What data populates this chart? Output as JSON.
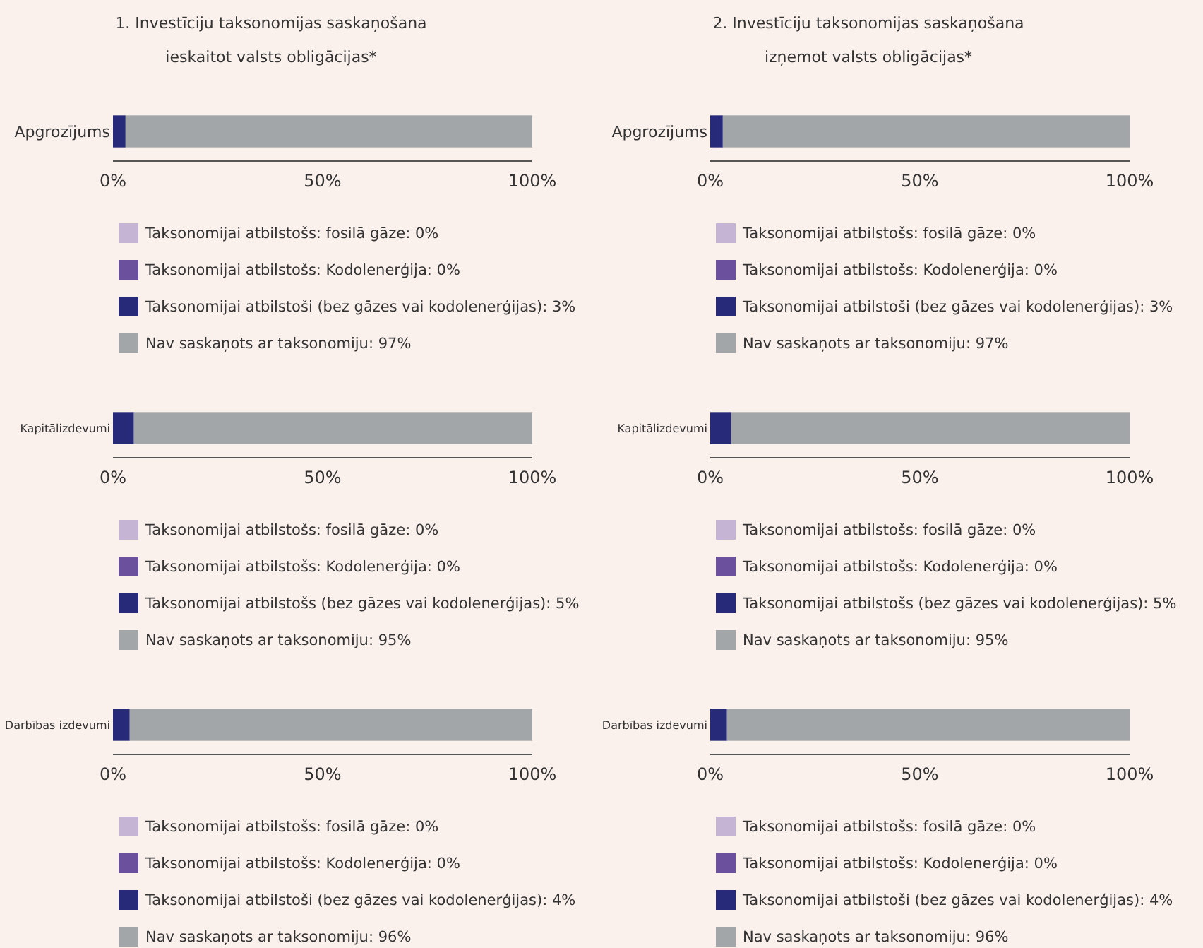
{
  "chart_data": [
    {
      "type": "bar",
      "orientation": "horizontal",
      "stacked": true,
      "title": "1. Investīciju taksonomijas saskaņošana\nieskaitot valsts obligācijas*",
      "categories": [
        "Apgrozījums"
      ],
      "xlim": [
        0,
        100
      ],
      "xticks": [
        {
          "value": 0,
          "label": "0%"
        },
        {
          "value": 50,
          "label": "50%"
        },
        {
          "value": 100,
          "label": "100%"
        }
      ],
      "legend": "bottom",
      "series": [
        {
          "name": "Taksonomijai atbilstošs: fosilā gāze: 0%",
          "color": "#c5b4d4",
          "values": [
            0
          ]
        },
        {
          "name": "Taksonomijai atbilstošs: Kodolenerģija: 0%",
          "color": "#6b519d",
          "values": [
            0
          ]
        },
        {
          "name": "Taksonomijai atbilstoši (bez gāzes vai kodolenerģijas): 3%",
          "color": "#262a78",
          "values": [
            3
          ]
        },
        {
          "name": "Nav saskaņots ar taksonomiju: 97%",
          "color": "#a3a6a9",
          "values": [
            97
          ]
        }
      ]
    },
    {
      "type": "bar",
      "orientation": "horizontal",
      "stacked": true,
      "title": "2. Investīciju taksonomijas saskaņošana\nizņemot valsts obligācijas*",
      "categories": [
        "Apgrozījums"
      ],
      "xlim": [
        0,
        100
      ],
      "xticks": [
        {
          "value": 0,
          "label": "0%"
        },
        {
          "value": 50,
          "label": "50%"
        },
        {
          "value": 100,
          "label": "100%"
        }
      ],
      "legend": "bottom",
      "series": [
        {
          "name": "Taksonomijai atbilstošs: fosilā gāze: 0%",
          "color": "#c5b4d4",
          "values": [
            0
          ]
        },
        {
          "name": "Taksonomijai atbilstošs: Kodolenerģija: 0%",
          "color": "#6b519d",
          "values": [
            0
          ]
        },
        {
          "name": "Taksonomijai atbilstoši (bez gāzes vai kodolenerģijas): 3%",
          "color": "#262a78",
          "values": [
            3
          ]
        },
        {
          "name": "Nav saskaņots ar taksonomiju: 97%",
          "color": "#a3a6a9",
          "values": [
            97
          ]
        }
      ]
    },
    {
      "type": "bar",
      "orientation": "horizontal",
      "stacked": true,
      "categories": [
        "Kapitālizdevumi"
      ],
      "xlim": [
        0,
        100
      ],
      "xticks": [
        {
          "value": 0,
          "label": "0%"
        },
        {
          "value": 50,
          "label": "50%"
        },
        {
          "value": 100,
          "label": "100%"
        }
      ],
      "legend": "bottom",
      "series": [
        {
          "name": "Taksonomijai atbilstošs: fosilā gāze: 0%",
          "color": "#c5b4d4",
          "values": [
            0
          ]
        },
        {
          "name": "Taksonomijai atbilstošs: Kodolenerģija: 0%",
          "color": "#6b519d",
          "values": [
            0
          ]
        },
        {
          "name": "Taksonomijai atbilstošs (bez gāzes vai kodolenerģijas): 5%",
          "color": "#262a78",
          "values": [
            5
          ]
        },
        {
          "name": "Nav saskaņots ar taksonomiju: 95%",
          "color": "#a3a6a9",
          "values": [
            95
          ]
        }
      ]
    },
    {
      "type": "bar",
      "orientation": "horizontal",
      "stacked": true,
      "categories": [
        "Kapitālizdevumi"
      ],
      "xlim": [
        0,
        100
      ],
      "xticks": [
        {
          "value": 0,
          "label": "0%"
        },
        {
          "value": 50,
          "label": "50%"
        },
        {
          "value": 100,
          "label": "100%"
        }
      ],
      "legend": "bottom",
      "series": [
        {
          "name": "Taksonomijai atbilstošs: fosilā gāze: 0%",
          "color": "#c5b4d4",
          "values": [
            0
          ]
        },
        {
          "name": "Taksonomijai atbilstošs: Kodolenerģija: 0%",
          "color": "#6b519d",
          "values": [
            0
          ]
        },
        {
          "name": "Taksonomijai atbilstošs (bez gāzes vai kodolenerģijas): 5%",
          "color": "#262a78",
          "values": [
            5
          ]
        },
        {
          "name": "Nav saskaņots ar taksonomiju: 95%",
          "color": "#a3a6a9",
          "values": [
            95
          ]
        }
      ]
    },
    {
      "type": "bar",
      "orientation": "horizontal",
      "stacked": true,
      "categories": [
        "Darbības izdevumi"
      ],
      "xlim": [
        0,
        100
      ],
      "xticks": [
        {
          "value": 0,
          "label": "0%"
        },
        {
          "value": 50,
          "label": "50%"
        },
        {
          "value": 100,
          "label": "100%"
        }
      ],
      "legend": "bottom",
      "series": [
        {
          "name": "Taksonomijai atbilstošs: fosilā gāze: 0%",
          "color": "#c5b4d4",
          "values": [
            0
          ]
        },
        {
          "name": "Taksonomijai atbilstošs: Kodolenerģija: 0%",
          "color": "#6b519d",
          "values": [
            0
          ]
        },
        {
          "name": "Taksonomijai atbilstoši (bez gāzes vai kodolenerģijas): 4%",
          "color": "#262a78",
          "values": [
            4
          ]
        },
        {
          "name": "Nav saskaņots ar taksonomiju: 96%",
          "color": "#a3a6a9",
          "values": [
            96
          ]
        }
      ]
    },
    {
      "type": "bar",
      "orientation": "horizontal",
      "stacked": true,
      "categories": [
        "Darbības izdevumi"
      ],
      "xlim": [
        0,
        100
      ],
      "xticks": [
        {
          "value": 0,
          "label": "0%"
        },
        {
          "value": 50,
          "label": "50%"
        },
        {
          "value": 100,
          "label": "100%"
        }
      ],
      "legend": "bottom",
      "series": [
        {
          "name": "Taksonomijai atbilstošs: fosilā gāze: 0%",
          "color": "#c5b4d4",
          "values": [
            0
          ]
        },
        {
          "name": "Taksonomijai atbilstošs: Kodolenerģija: 0%",
          "color": "#6b519d",
          "values": [
            0
          ]
        },
        {
          "name": "Taksonomijai atbilstoši (bez gāzes vai kodolenerģijas): 4%",
          "color": "#262a78",
          "values": [
            4
          ]
        },
        {
          "name": "Nav saskaņots ar taksonomiju: 96%",
          "color": "#a3a6a9",
          "values": [
            96
          ]
        }
      ]
    }
  ]
}
